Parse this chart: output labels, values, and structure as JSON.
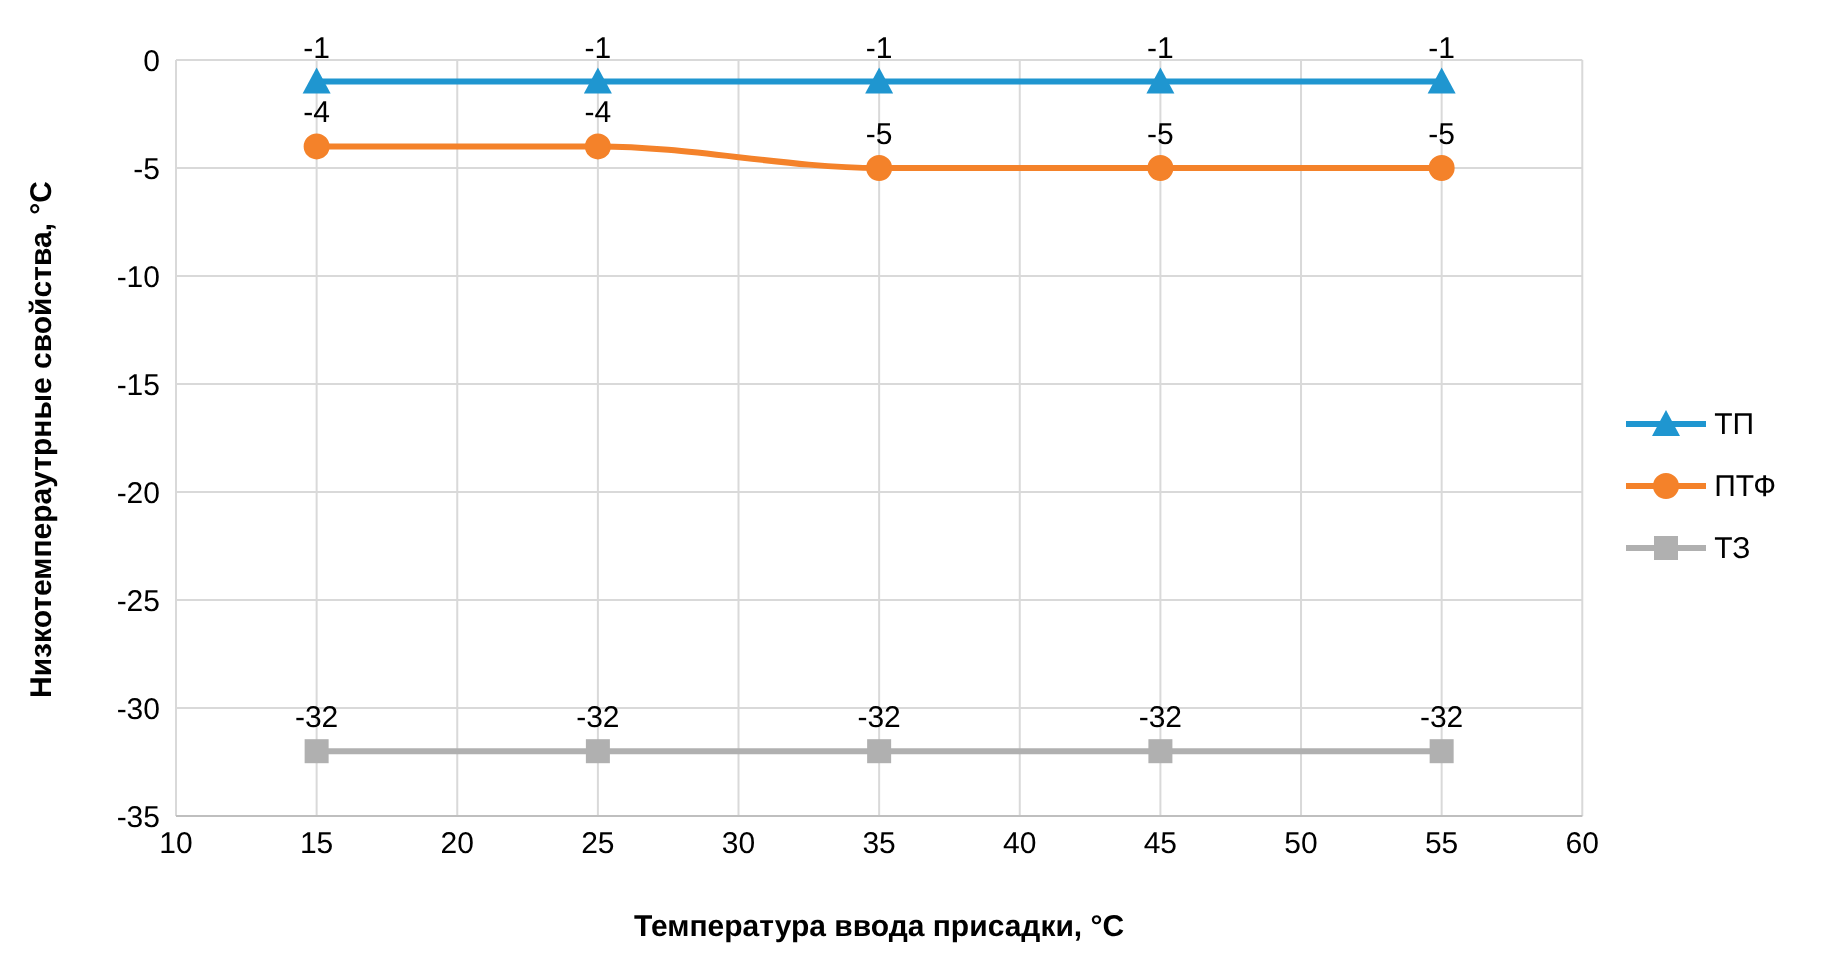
{
  "chart_data": {
    "type": "line",
    "xlabel": "Температура ввода присадки, °C",
    "ylabel": "Низкотемпераутрные свойства, °C",
    "x": [
      15,
      25,
      35,
      45,
      55
    ],
    "series": [
      {
        "name": "ТП",
        "color": "#1f96d0",
        "values": [
          -1,
          -1,
          -1,
          -1,
          -1
        ],
        "marker": "triangle"
      },
      {
        "name": "ПТФ",
        "color": "#f4822a",
        "values": [
          -4,
          -4,
          -5,
          -5,
          -5
        ],
        "marker": "circle"
      },
      {
        "name": "ТЗ",
        "color": "#b0b0b0",
        "values": [
          -32,
          -32,
          -32,
          -32,
          -32
        ],
        "marker": "square"
      }
    ],
    "xlim": [
      10,
      60
    ],
    "xticks": [
      10,
      15,
      20,
      25,
      30,
      35,
      40,
      45,
      50,
      55,
      60
    ],
    "ylim": [
      -35,
      0
    ],
    "yticks": [
      0,
      -5,
      -10,
      -15,
      -20,
      -25,
      -30,
      -35
    ],
    "grid": true,
    "legend": "right",
    "data_labels": true,
    "line_style": "solid"
  }
}
